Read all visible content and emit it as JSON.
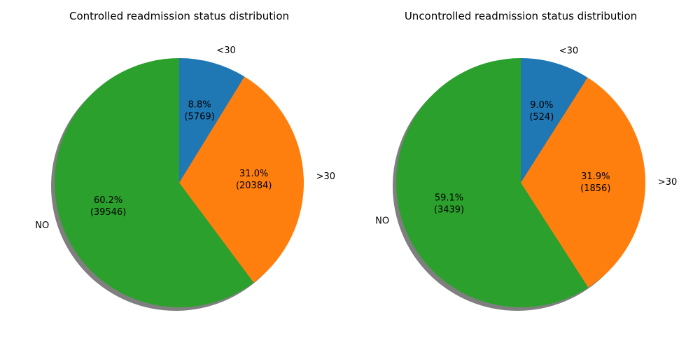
{
  "chart_data": [
    {
      "type": "pie",
      "title": "Controlled readmission status distribution",
      "start_angle_deg": 90,
      "direction": "clockwise",
      "shadow": true,
      "slices": [
        {
          "label": "<30",
          "value": 5769,
          "pct_label": "8.8%",
          "count_label": "(5769)",
          "color": "#1f77b4"
        },
        {
          "label": ">30",
          "value": 20384,
          "pct_label": "31.0%",
          "count_label": "(20384)",
          "color": "#ff7f0e"
        },
        {
          "label": "NO",
          "value": 39546,
          "pct_label": "60.2%",
          "count_label": "(39546)",
          "color": "#2ca02c"
        }
      ]
    },
    {
      "type": "pie",
      "title": "Uncontrolled readmission status distribution",
      "start_angle_deg": 90,
      "direction": "clockwise",
      "shadow": true,
      "slices": [
        {
          "label": "<30",
          "value": 524,
          "pct_label": "9.0%",
          "count_label": "(524)",
          "color": "#1f77b4"
        },
        {
          "label": ">30",
          "value": 1856,
          "pct_label": "31.9%",
          "count_label": "(1856)",
          "color": "#ff7f0e"
        },
        {
          "label": "NO",
          "value": 3439,
          "pct_label": "59.1%",
          "count_label": "(3439)",
          "color": "#2ca02c"
        }
      ]
    }
  ]
}
